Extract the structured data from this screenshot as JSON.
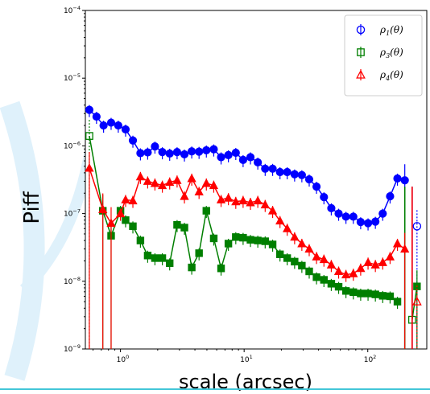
{
  "chart_data": {
    "type": "line",
    "xscale": "log",
    "yscale": "log",
    "xlim": [
      0.52,
      300
    ],
    "ylim": [
      1e-09,
      0.0001
    ],
    "xlabel": "scale (arcsec)",
    "ylabel": "Piff",
    "xticks": [
      {
        "value": 1,
        "base": "10",
        "exp": "0"
      },
      {
        "value": 10,
        "base": "10",
        "exp": "1"
      },
      {
        "value": 100,
        "base": "10",
        "exp": "2"
      }
    ],
    "yticks": [
      {
        "value": 1e-09,
        "base": "10",
        "exp": "−9"
      },
      {
        "value": 1e-08,
        "base": "10",
        "exp": "−8"
      },
      {
        "value": 1e-07,
        "base": "10",
        "exp": "−7"
      },
      {
        "value": 1e-06,
        "base": "10",
        "exp": "−6"
      },
      {
        "value": 1e-05,
        "base": "10",
        "exp": "−5"
      },
      {
        "value": 0.0001,
        "base": "10",
        "exp": "−4"
      }
    ],
    "legend_position": "top-right",
    "series": [
      {
        "name": "ρ1(θ)",
        "legend_main": "ρ",
        "legend_sub": "1",
        "legend_tail": "(θ)",
        "color": "#0000ff",
        "marker": "circle",
        "x": [
          0.56,
          0.64,
          0.73,
          0.84,
          0.96,
          1.1,
          1.26,
          1.45,
          1.66,
          1.9,
          2.18,
          2.5,
          2.87,
          3.29,
          3.77,
          4.32,
          4.95,
          5.68,
          6.51,
          7.46,
          8.56,
          9.81,
          11.25,
          12.9,
          14.8,
          17.0,
          19.5,
          22.3,
          25.6,
          29.3,
          33.6,
          38.5,
          44.2,
          50.7,
          58.1,
          66.6,
          76.4,
          87.6,
          100.5,
          115.2,
          132.1,
          151.5,
          173.7,
          199.2,
          228.4,
          250
        ],
        "y": [
          3.4e-06,
          2.7e-06,
          2e-06,
          2.2e-06,
          2e-06,
          1.75e-06,
          1.2e-06,
          7.8e-07,
          8e-07,
          9.8e-07,
          8.1e-07,
          7.7e-07,
          8.1e-07,
          7.5e-07,
          8.3e-07,
          8.2e-07,
          8.6e-07,
          8.9e-07,
          6.8e-07,
          7.3e-07,
          7.9e-07,
          6.2e-07,
          6.8e-07,
          5.7e-07,
          4.6e-07,
          4.6e-07,
          4.1e-07,
          4.1e-07,
          3.8e-07,
          3.7e-07,
          3.2e-07,
          2.5e-07,
          1.75e-07,
          1.2e-07,
          1e-07,
          9e-08,
          9e-08,
          7.5e-08,
          7.2e-08,
          7.6e-08,
          1e-07,
          1.8e-07,
          3.3e-07,
          3.1e-07,
          0,
          6.5e-08
        ],
        "open_last": true
      },
      {
        "name": "ρ3(θ)",
        "legend_main": "ρ",
        "legend_sub": "3",
        "legend_tail": "(θ)",
        "color": "#007f00",
        "marker": "square",
        "x": [
          0.56,
          0.72,
          0.84,
          1.0,
          1.1,
          1.26,
          1.45,
          1.66,
          1.9,
          2.18,
          2.5,
          2.87,
          3.29,
          3.77,
          4.32,
          4.95,
          5.68,
          6.51,
          7.46,
          8.56,
          9.81,
          11.25,
          12.9,
          14.8,
          17.0,
          19.5,
          22.3,
          25.6,
          29.3,
          33.6,
          38.5,
          44.2,
          50.7,
          58.1,
          66.6,
          76.4,
          87.6,
          100.5,
          115.2,
          132.1,
          151.5,
          173.7,
          199.2,
          228.4,
          250
        ],
        "y": [
          1.4e-06,
          1.1e-07,
          4.7e-08,
          1.1e-07,
          8e-08,
          6.5e-08,
          4e-08,
          2.4e-08,
          2.2e-08,
          2.2e-08,
          1.85e-08,
          6.8e-08,
          6.2e-08,
          1.6e-08,
          2.6e-08,
          1.1e-07,
          4.3e-08,
          1.55e-08,
          3.6e-08,
          4.5e-08,
          4.4e-08,
          4.1e-08,
          4e-08,
          3.9e-08,
          3.5e-08,
          2.5e-08,
          2.2e-08,
          1.95e-08,
          1.7e-08,
          1.4e-08,
          1.15e-08,
          1.05e-08,
          9.2e-09,
          8.3e-09,
          7.2e-09,
          6.9e-09,
          6.6e-09,
          6.6e-09,
          6.4e-09,
          6.1e-09,
          6e-09,
          5e-09,
          0,
          2.7e-09,
          8.4e-09
        ],
        "open_first": true,
        "open_indices": [
          43
        ]
      },
      {
        "name": "ρ4(θ)",
        "legend_main": "ρ",
        "legend_sub": "4",
        "legend_tail": "(θ)",
        "color": "#ff0000",
        "marker": "triangle",
        "x": [
          0.56,
          0.72,
          0.84,
          1.0,
          1.1,
          1.26,
          1.45,
          1.66,
          1.9,
          2.18,
          2.5,
          2.87,
          3.29,
          3.77,
          4.32,
          4.95,
          5.68,
          6.51,
          7.46,
          8.56,
          9.81,
          11.25,
          12.9,
          14.8,
          17.0,
          19.5,
          22.3,
          25.6,
          29.3,
          33.6,
          38.5,
          44.2,
          50.7,
          58.1,
          66.6,
          76.4,
          87.6,
          100.5,
          115.2,
          132.1,
          151.5,
          173.7,
          199.2,
          228.4,
          250
        ],
        "y": [
          4.7e-07,
          1.15e-07,
          7.2e-08,
          1e-07,
          1.6e-07,
          1.55e-07,
          3.5e-07,
          3e-07,
          2.8e-07,
          2.6e-07,
          2.9e-07,
          3.1e-07,
          1.8e-07,
          3.3e-07,
          2.1e-07,
          2.8e-07,
          2.6e-07,
          1.6e-07,
          1.7e-07,
          1.5e-07,
          1.55e-07,
          1.45e-07,
          1.55e-07,
          1.35e-07,
          1.1e-07,
          7.8e-08,
          6e-08,
          4.5e-08,
          3.6e-08,
          3e-08,
          2.3e-08,
          2.1e-08,
          1.75e-08,
          1.4e-08,
          1.25e-08,
          1.3e-08,
          1.55e-08,
          1.9e-08,
          1.75e-08,
          1.9e-08,
          2.3e-08,
          3.6e-08,
          3e-08,
          0,
          5e-09
        ],
        "open_last": true
      }
    ]
  }
}
